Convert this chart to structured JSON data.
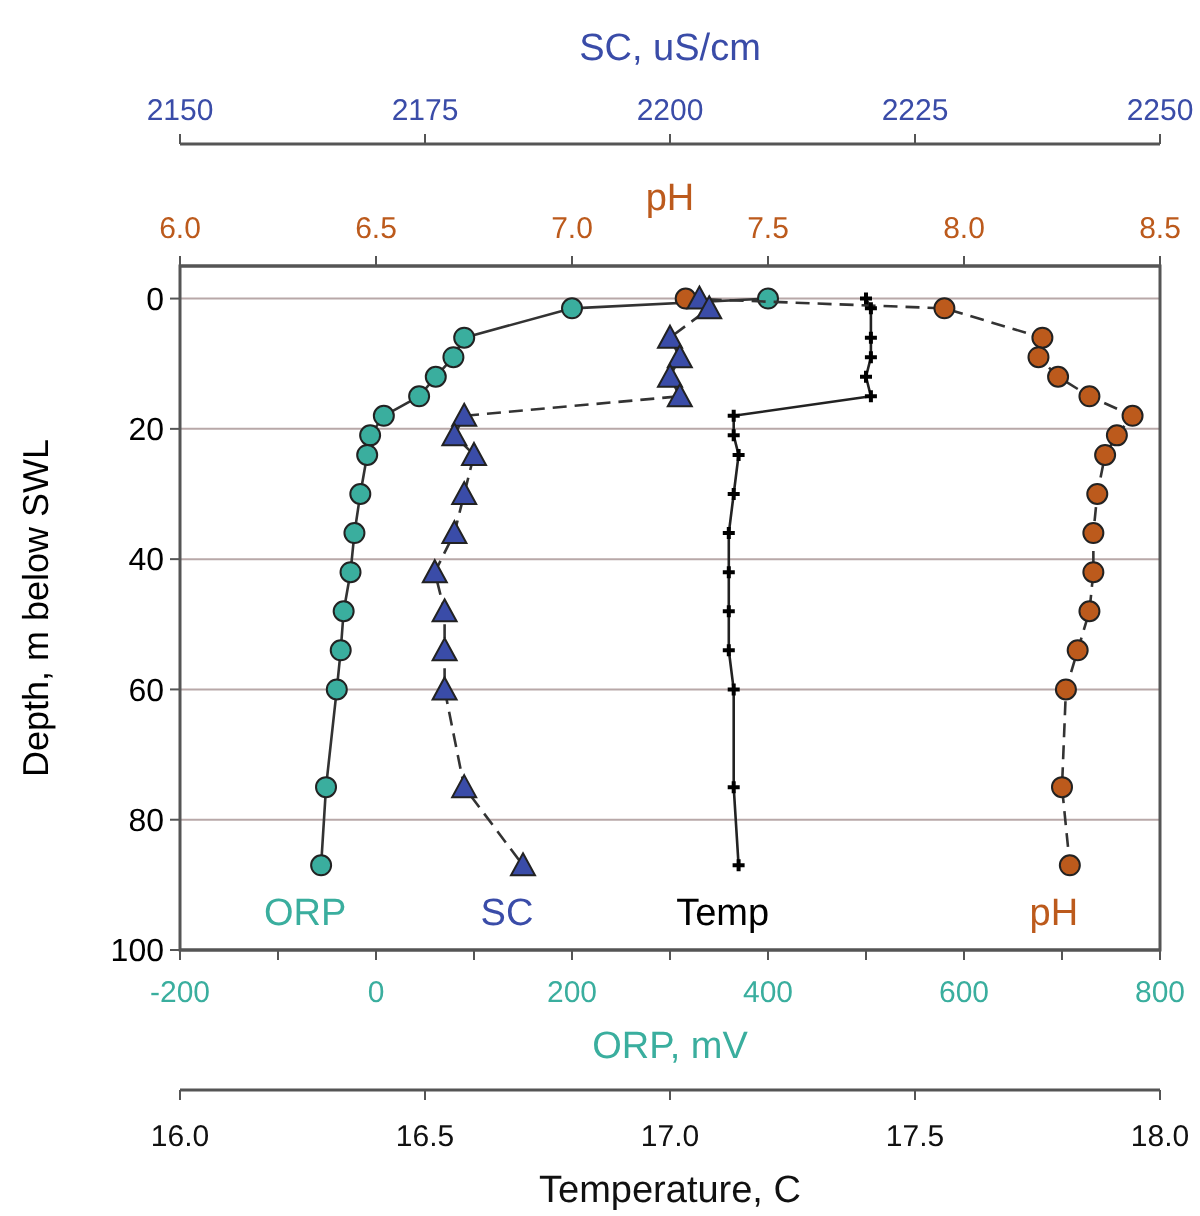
{
  "chart_data": [
    {
      "type": "line",
      "xlabel": "ORP, mV",
      "x2label": "pH",
      "ylabel": "Depth, m below SWL",
      "xlim": [
        -200,
        800
      ],
      "xticks": [
        -200,
        {
          "value": -100,
          "label": null
        },
        0,
        {
          "value": 100,
          "label": null
        },
        200,
        {
          "value": 300,
          "label": null
        },
        400,
        {
          "value": 500,
          "label": null
        },
        600,
        {
          "value": 700,
          "label": null
        },
        800
      ],
      "x2lim": [
        6,
        8.5
      ],
      "x2ticks": [
        {
          "value": 6,
          "label": "6.0"
        },
        6.5,
        {
          "value": 7,
          "label": "7.0"
        },
        7.5,
        {
          "value": 8,
          "label": "8.0"
        },
        8.5
      ],
      "ylim": [
        100,
        -5
      ],
      "yticks": [
        0,
        20,
        40,
        60,
        80,
        100
      ],
      "grid": "y",
      "series": [
        {
          "name": "ORP",
          "color": "#3aae9e",
          "marker": "circle",
          "line_style": "solid",
          "x": [
            400,
            200,
            90,
            79,
            61,
            44,
            8,
            -6,
            -9,
            -16,
            -22,
            -26,
            -33,
            -36,
            -40,
            -51,
            -56
          ],
          "values": [
            0,
            1.5,
            6,
            9,
            12,
            15,
            18,
            21,
            24,
            30,
            36,
            42,
            48,
            54,
            60,
            75,
            87
          ]
        },
        {
          "name": "pH",
          "color": "#bc5a1c",
          "axis": "x2",
          "marker": "circle",
          "line_style": "dashed",
          "x": [
            7.29,
            7.95,
            8.2,
            8.19,
            8.24,
            8.32,
            8.43,
            8.39,
            8.36,
            8.34,
            8.33,
            8.33,
            8.32,
            8.29,
            8.26,
            8.25,
            8.27
          ],
          "values": [
            0,
            1.5,
            6,
            9,
            12,
            15,
            18,
            21,
            24,
            30,
            36,
            42,
            48,
            54,
            60,
            75,
            87
          ]
        }
      ]
    },
    {
      "type": "line",
      "xlabel": "Temperature, C",
      "x2label": "SC, uS/cm",
      "tick_labels": "x",
      "xlim": [
        16,
        18
      ],
      "xticks": [
        {
          "value": 16,
          "label": "16.0"
        },
        16.5,
        {
          "value": 17,
          "label": "17.0"
        },
        17.5,
        {
          "value": 18,
          "label": "18.0"
        }
      ],
      "x2lim": [
        2150,
        2250
      ],
      "x2ticks": [
        2150,
        2175,
        2200,
        2225,
        2250
      ],
      "ylim": [
        100,
        -5
      ],
      "series": [
        {
          "name": "Temp",
          "color": "#000000",
          "marker": "cross",
          "line_style": "solid",
          "x": [
            17.4,
            17.41,
            17.41,
            17.41,
            17.4,
            17.41,
            17.13,
            17.13,
            17.14,
            17.13,
            17.12,
            17.12,
            17.12,
            17.12,
            17.13,
            17.13,
            17.14
          ],
          "values": [
            0,
            1.5,
            6,
            9,
            12,
            15,
            18,
            21,
            24,
            30,
            36,
            42,
            48,
            54,
            60,
            75,
            87
          ]
        },
        {
          "name": "SC",
          "color": "#3a4ca8",
          "axis": "x2",
          "marker": "triangle",
          "line_style": "dashed",
          "x": [
            2203,
            2204,
            2200,
            2201,
            2200,
            2201,
            2179,
            2178,
            2180,
            2179,
            2178,
            2176,
            2177,
            2177,
            2177,
            2179,
            2185
          ],
          "values": [
            0,
            1.5,
            6,
            9,
            12,
            15,
            18,
            21,
            24,
            30,
            36,
            42,
            48,
            54,
            60,
            75,
            87
          ]
        }
      ]
    }
  ]
}
